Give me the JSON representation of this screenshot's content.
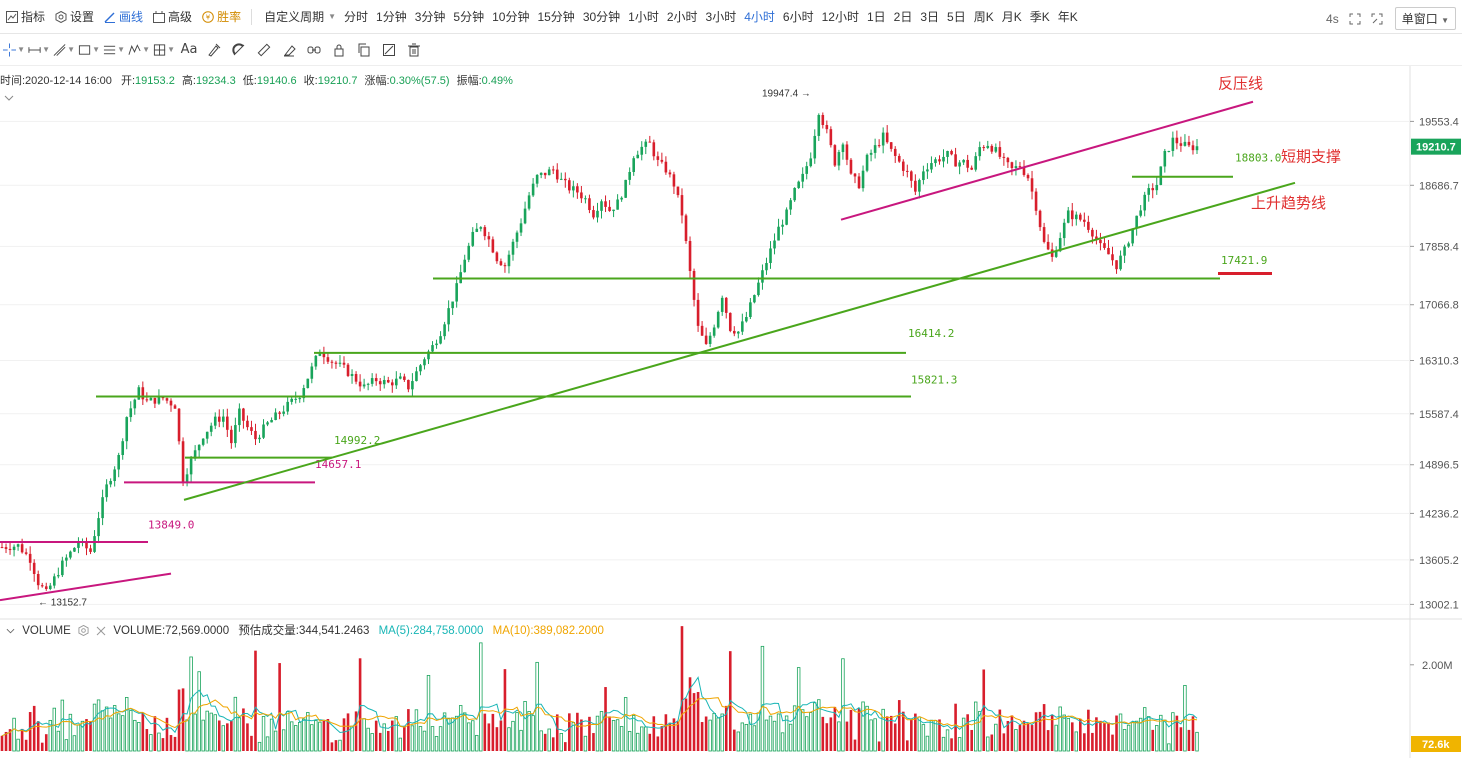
{
  "topbar": {
    "tools": [
      {
        "label": "指标",
        "icon": "indicator-icon"
      },
      {
        "label": "设置",
        "icon": "settings-icon"
      },
      {
        "label": "画线",
        "icon": "draw-line-icon",
        "active": true
      },
      {
        "label": "高级",
        "icon": "advanced-icon"
      },
      {
        "label": "胜率",
        "icon": "winrate-icon",
        "win": true
      }
    ],
    "custom_period": "自定义周期",
    "periods": [
      "分时",
      "1分钟",
      "3分钟",
      "5分钟",
      "10分钟",
      "15分钟",
      "30分钟",
      "1小时",
      "2小时",
      "3小时",
      "4小时",
      "6小时",
      "12小时",
      "1日",
      "2日",
      "3日",
      "5日",
      "周K",
      "月K",
      "季K",
      "年K"
    ],
    "active_period": "4小时",
    "timer": "4s",
    "window_mode": "单窗口"
  },
  "infoline": {
    "time": "时间:2020-12-14 16:00",
    "open_label": "开:",
    "open": "19153.2",
    "high_label": "高:",
    "high": "19234.3",
    "low_label": "低:",
    "low": "19140.6",
    "close_label": "收:",
    "close": "19210.7",
    "change_label": "涨幅:",
    "change": "0.30%(57.5)",
    "amp_label": "振幅:",
    "amp": "0.49%"
  },
  "volinfo": {
    "title": "VOLUME",
    "volume": "VOLUME:72,569.0000",
    "est": "预估成交量:344,541.2463",
    "ma5": "MA(5):284,758.0000",
    "ma10": "MA(10):389,082.2000"
  },
  "chart_data": {
    "type": "candlestick",
    "price_axis_ticks": [
      "19553.4",
      "18686.7",
      "17858.4",
      "17066.8",
      "16310.3",
      "15587.4",
      "14896.5",
      "14236.2",
      "13605.2",
      "13002.1"
    ],
    "price_ylim": [
      12850,
      20150
    ],
    "last_price": "19210.7",
    "volume_axis_ticks": [
      "2.00M"
    ],
    "last_volume": "72.6k",
    "colors": {
      "up": "#19a45b",
      "down": "#d81e2c",
      "support": "#4aa61c",
      "resistance": "#c8177e",
      "ma5": "#19b6b6",
      "ma10": "#f0a500",
      "last_price_bg": "#19a45b"
    },
    "annotations": {
      "high_mark": "19947.4",
      "low_mark": "13152.7",
      "resistance_label": "反压线",
      "support_short_label": "短期支撑",
      "trend_label": "上升趋势线",
      "levels": [
        {
          "value": "18803.0",
          "color": "green"
        },
        {
          "value": "17421.9",
          "color": "green"
        },
        {
          "value": "16414.2",
          "color": "green"
        },
        {
          "value": "15821.3",
          "color": "green"
        },
        {
          "value": "14992.2",
          "color": "green"
        },
        {
          "value": "14657.1",
          "color": "magenta"
        },
        {
          "value": "13849.0",
          "color": "magenta"
        }
      ]
    },
    "waypoints": [
      [
        0,
        13780
      ],
      [
        4,
        13800
      ],
      [
        7,
        13620
      ],
      [
        9,
        13300
      ],
      [
        11,
        13152.7
      ],
      [
        13,
        13350
      ],
      [
        15,
        13550
      ],
      [
        19,
        13849
      ],
      [
        22,
        13720
      ],
      [
        24,
        14200
      ],
      [
        26,
        14600
      ],
      [
        29,
        15000
      ],
      [
        31,
        15550
      ],
      [
        34,
        15900
      ],
      [
        36,
        15750
      ],
      [
        40,
        15800
      ],
      [
        43,
        15700
      ],
      [
        45,
        14700
      ],
      [
        47,
        14950
      ],
      [
        50,
        15300
      ],
      [
        53,
        15500
      ],
      [
        55,
        15550
      ],
      [
        57,
        15200
      ],
      [
        59,
        15600
      ],
      [
        61,
        15400
      ],
      [
        63,
        15250
      ],
      [
        66,
        15450
      ],
      [
        69,
        15600
      ],
      [
        72,
        15750
      ],
      [
        74,
        15850
      ],
      [
        77,
        16200
      ],
      [
        79,
        16450
      ],
      [
        82,
        16300
      ],
      [
        85,
        16200
      ],
      [
        88,
        16050
      ],
      [
        90,
        15950
      ],
      [
        93,
        16050
      ],
      [
        96,
        16000
      ],
      [
        99,
        16050
      ],
      [
        101,
        15950
      ],
      [
        103,
        16150
      ],
      [
        105,
        16350
      ],
      [
        107,
        16500
      ],
      [
        109,
        16700
      ],
      [
        111,
        17000
      ],
      [
        113,
        17300
      ],
      [
        115,
        17700
      ],
      [
        117,
        18000
      ],
      [
        119,
        18150
      ],
      [
        121,
        17950
      ],
      [
        123,
        17700
      ],
      [
        125,
        17600
      ],
      [
        127,
        17900
      ],
      [
        129,
        18200
      ],
      [
        131,
        18550
      ],
      [
        133,
        18800
      ],
      [
        135,
        18850
      ],
      [
        137,
        18900
      ],
      [
        139,
        18750
      ],
      [
        141,
        18650
      ],
      [
        143,
        18600
      ],
      [
        145,
        18500
      ],
      [
        147,
        18300
      ],
      [
        149,
        18500
      ],
      [
        151,
        18350
      ],
      [
        153,
        18450
      ],
      [
        155,
        18700
      ],
      [
        157,
        19100
      ],
      [
        159,
        19200
      ],
      [
        161,
        19250
      ],
      [
        163,
        19000
      ],
      [
        165,
        18900
      ],
      [
        167,
        18700
      ],
      [
        169,
        18300
      ],
      [
        171,
        17500
      ],
      [
        173,
        16750
      ],
      [
        175,
        16500
      ],
      [
        177,
        16800
      ],
      [
        179,
        17200
      ],
      [
        181,
        16750
      ],
      [
        183,
        16700
      ],
      [
        185,
        16900
      ],
      [
        187,
        17200
      ],
      [
        189,
        17500
      ],
      [
        191,
        17800
      ],
      [
        193,
        18100
      ],
      [
        195,
        18300
      ],
      [
        197,
        18600
      ],
      [
        199,
        18800
      ],
      [
        201,
        19100
      ],
      [
        203,
        19700
      ],
      [
        205,
        19400
      ],
      [
        207,
        19000
      ],
      [
        209,
        19300
      ],
      [
        211,
        18800
      ],
      [
        213,
        18700
      ],
      [
        215,
        19050
      ],
      [
        217,
        19200
      ],
      [
        219,
        19350
      ],
      [
        221,
        19150
      ],
      [
        223,
        19000
      ],
      [
        225,
        18850
      ],
      [
        227,
        18600
      ],
      [
        229,
        18900
      ],
      [
        231,
        19000
      ],
      [
        233,
        19050
      ],
      [
        235,
        19100
      ],
      [
        237,
        19000
      ],
      [
        239,
        19000
      ],
      [
        241,
        18900
      ],
      [
        243,
        19200
      ],
      [
        245,
        19250
      ],
      [
        247,
        19150
      ],
      [
        249,
        19000
      ],
      [
        251,
        18900
      ],
      [
        253,
        18950
      ],
      [
        255,
        18800
      ],
      [
        257,
        18400
      ],
      [
        259,
        17900
      ],
      [
        261,
        17700
      ],
      [
        263,
        18000
      ],
      [
        265,
        18300
      ],
      [
        267,
        18250
      ],
      [
        269,
        18200
      ],
      [
        271,
        18050
      ],
      [
        273,
        17850
      ],
      [
        275,
        17750
      ],
      [
        277,
        17600
      ],
      [
        279,
        17800
      ],
      [
        281,
        18100
      ],
      [
        283,
        18400
      ],
      [
        285,
        18600
      ],
      [
        287,
        18700
      ],
      [
        289,
        19100
      ],
      [
        291,
        19300
      ],
      [
        293,
        19250
      ],
      [
        295,
        19200
      ],
      [
        297,
        19210.7
      ]
    ],
    "volume_note": "volume bars follow candle color; spikes near reversals"
  }
}
